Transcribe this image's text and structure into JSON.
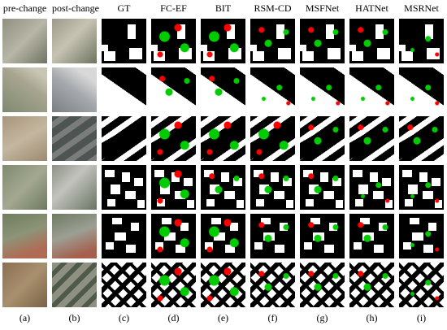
{
  "header": {
    "columns": [
      "pre-change",
      "post-change",
      "GT",
      "FC-EF",
      "BIT",
      "RSM-CD",
      "MSFNet",
      "HATNet",
      "MSRNet"
    ]
  },
  "footer": {
    "labels": [
      "(a)",
      "(b)",
      "(c)",
      "(d)",
      "(e)",
      "(f)",
      "(g)",
      "(h)",
      "(i)"
    ]
  }
}
